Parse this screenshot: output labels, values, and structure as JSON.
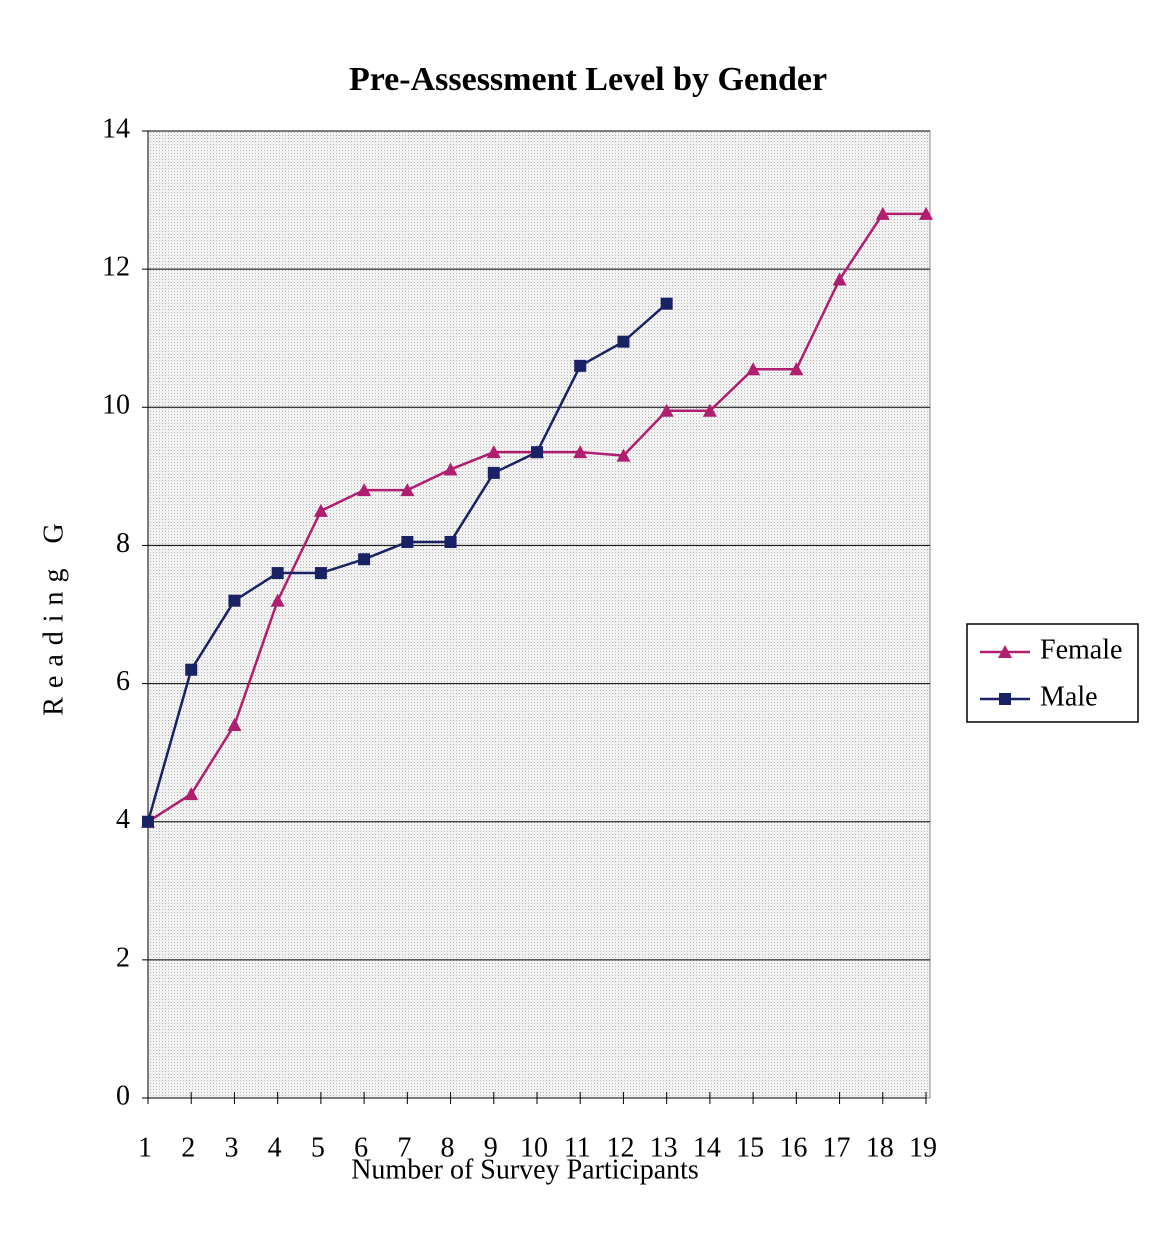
{
  "chart_data": {
    "type": "line",
    "title": "Pre-Assessment Level by Gender",
    "x_label": "Number of Survey Participants",
    "y_label": "Reading G",
    "x": [
      1,
      2,
      3,
      4,
      5,
      6,
      7,
      8,
      9,
      10,
      11,
      12,
      13,
      14,
      15,
      16,
      17,
      18,
      19
    ],
    "xlim": [
      1,
      19
    ],
    "xticks": [
      1,
      2,
      3,
      4,
      5,
      6,
      7,
      8,
      9,
      10,
      11,
      12,
      13,
      14,
      15,
      16,
      17,
      18,
      19
    ],
    "ylim": [
      0,
      14
    ],
    "yticks": [
      0,
      2,
      4,
      6,
      8,
      10,
      12,
      14
    ],
    "grid": true,
    "legend": "right",
    "series": [
      {
        "name": "Female",
        "color": "#b01e70",
        "marker": "triangle",
        "values": [
          4,
          4.4,
          5.4,
          7.2,
          8.5,
          8.8,
          8.8,
          9.1,
          9.35,
          9.35,
          9.35,
          9.3,
          9.95,
          9.95,
          10.55,
          10.55,
          11.85,
          12.8,
          12.8
        ]
      },
      {
        "name": "Male",
        "color": "#1a2266",
        "marker": "square",
        "values": [
          4,
          6.2,
          7.2,
          7.6,
          7.6,
          7.8,
          8.05,
          8.05,
          9.05,
          9.35,
          10.6,
          10.95,
          11.5,
          null,
          null,
          null,
          null,
          null,
          null
        ]
      }
    ]
  }
}
